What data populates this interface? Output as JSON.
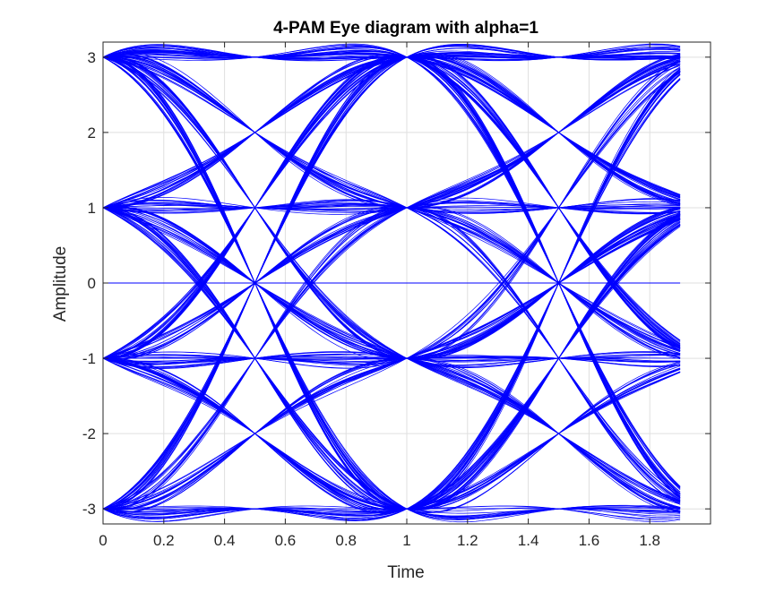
{
  "chart_data": {
    "type": "line",
    "title": "4-PAM Eye diagram with alpha=1",
    "xlabel": "Time",
    "ylabel": "Amplitude",
    "xlim": [
      0,
      2
    ],
    "ylim": [
      -3.2,
      3.2
    ],
    "x_ticks": [
      0,
      0.2,
      0.4,
      0.6,
      0.8,
      1,
      1.2,
      1.4,
      1.6,
      1.8
    ],
    "x_tick_labels": [
      "0",
      "0.2",
      "0.4",
      "0.6",
      "0.8",
      "1",
      "1.2",
      "1.4",
      "1.6",
      "1.8"
    ],
    "y_ticks": [
      3,
      2,
      1,
      0,
      -1,
      -2,
      -3
    ],
    "y_tick_labels": [
      "3",
      "2",
      "1",
      "0",
      "-1",
      "-2",
      "-3"
    ],
    "grid": true,
    "box": true,
    "line_color": "#0000ff",
    "symbol_levels": [
      -3,
      -1,
      1,
      3
    ],
    "rolloff_alpha": 1,
    "symbol_period": 1,
    "trace_window": [
      0,
      1.9
    ],
    "series": [
      {
        "values": "4-PAM raised-cosine eye traces; transitions between levels -3, -1, 1, 3 with crossings at t = 0.5 and 1.5"
      },
      {
        "values": "constant trace at amplitude 0 from t = 0 to 1.9"
      }
    ]
  }
}
